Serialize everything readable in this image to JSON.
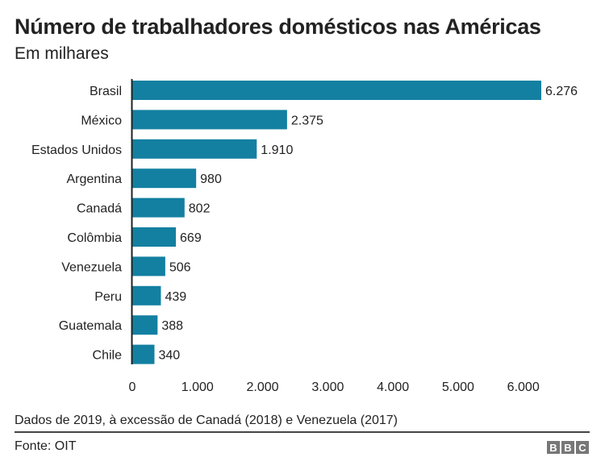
{
  "chart_data": {
    "type": "bar",
    "orientation": "horizontal",
    "title": "Número de trabalhadores domésticos nas Américas",
    "subtitle": "Em milhares",
    "categories": [
      "Brasil",
      "México",
      "Estados Unidos",
      "Argentina",
      "Canadá",
      "Colômbia",
      "Venezuela",
      "Peru",
      "Guatemala",
      "Chile"
    ],
    "values": [
      6276,
      2375,
      1910,
      980,
      802,
      669,
      506,
      439,
      388,
      340
    ],
    "data_labels": [
      "6.276",
      "2.375",
      "1.910",
      "980",
      "802",
      "669",
      "506",
      "439",
      "388",
      "340"
    ],
    "xticks": [
      0,
      1000,
      2000,
      3000,
      4000,
      5000,
      6000
    ],
    "xtick_labels": [
      "0",
      "1.000",
      "2.000",
      "3.000",
      "4.000",
      "5.000",
      "6.000"
    ],
    "xlim": [
      0,
      6276
    ],
    "grid": false,
    "bar_color": "#1380A1",
    "note": "Dados de 2019, à excessão de Canadá (2018) e Venezuela (2017)",
    "source": "Fonte: OIT",
    "logo": [
      "B",
      "B",
      "C"
    ]
  }
}
